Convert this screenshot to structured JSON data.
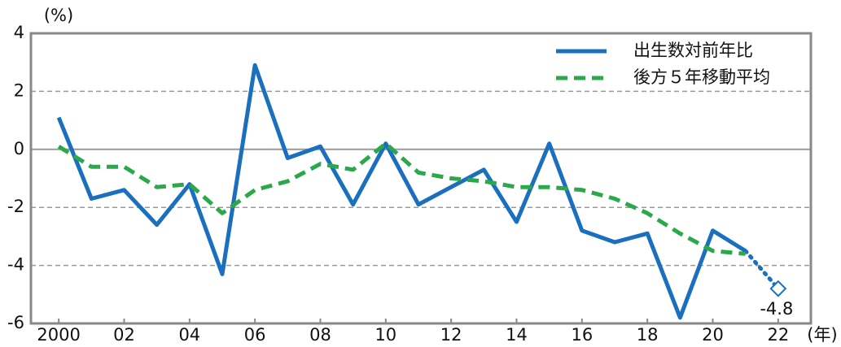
{
  "chart_data": {
    "type": "line",
    "y_unit": "(%)",
    "x_unit": "(年)",
    "x": [
      2000,
      2001,
      2002,
      2003,
      2004,
      2005,
      2006,
      2007,
      2008,
      2009,
      2010,
      2011,
      2012,
      2013,
      2014,
      2015,
      2016,
      2017,
      2018,
      2019,
      2020,
      2021,
      2022
    ],
    "series": [
      {
        "name": "出生数対前年比",
        "color": "#1a6fbf",
        "style": "solid",
        "estimate_last": true,
        "values": [
          1.1,
          -1.7,
          -1.4,
          -2.6,
          -1.2,
          -4.3,
          2.9,
          -0.3,
          0.1,
          -1.9,
          0.2,
          -1.9,
          -1.3,
          -0.7,
          -2.5,
          0.2,
          -2.8,
          -3.2,
          -2.9,
          -5.8,
          -2.8,
          -3.5,
          -4.8
        ]
      },
      {
        "name": "後方５年移動平均",
        "color": "#2aa84a",
        "style": "dashed",
        "values": [
          0.1,
          -0.6,
          -0.6,
          -1.3,
          -1.2,
          -2.2,
          -1.4,
          -1.1,
          -0.5,
          -0.7,
          0.2,
          -0.8,
          -1.0,
          -1.1,
          -1.3,
          -1.3,
          -1.4,
          -1.7,
          -2.2,
          -2.9,
          -3.5,
          -3.6,
          null
        ]
      }
    ],
    "xlim": [
      1999.15,
      2023.0
    ],
    "xticks": [
      2000,
      {
        "value": 2002,
        "label": "02"
      },
      {
        "value": 2004,
        "label": "04"
      },
      {
        "value": 2006,
        "label": "06"
      },
      {
        "value": 2008,
        "label": "08"
      },
      {
        "value": 2010,
        "label": "10"
      },
      {
        "value": 2012,
        "label": "12"
      },
      {
        "value": 2014,
        "label": "14"
      },
      {
        "value": 2016,
        "label": "16"
      },
      {
        "value": 2018,
        "label": "18"
      },
      {
        "value": 2020,
        "label": "20"
      },
      {
        "value": 2022,
        "label": "22"
      }
    ],
    "ylim": [
      -6,
      4
    ],
    "yticks": [
      -6,
      -4,
      -2,
      0,
      2,
      4
    ],
    "grid": true,
    "legend": "upper right"
  }
}
